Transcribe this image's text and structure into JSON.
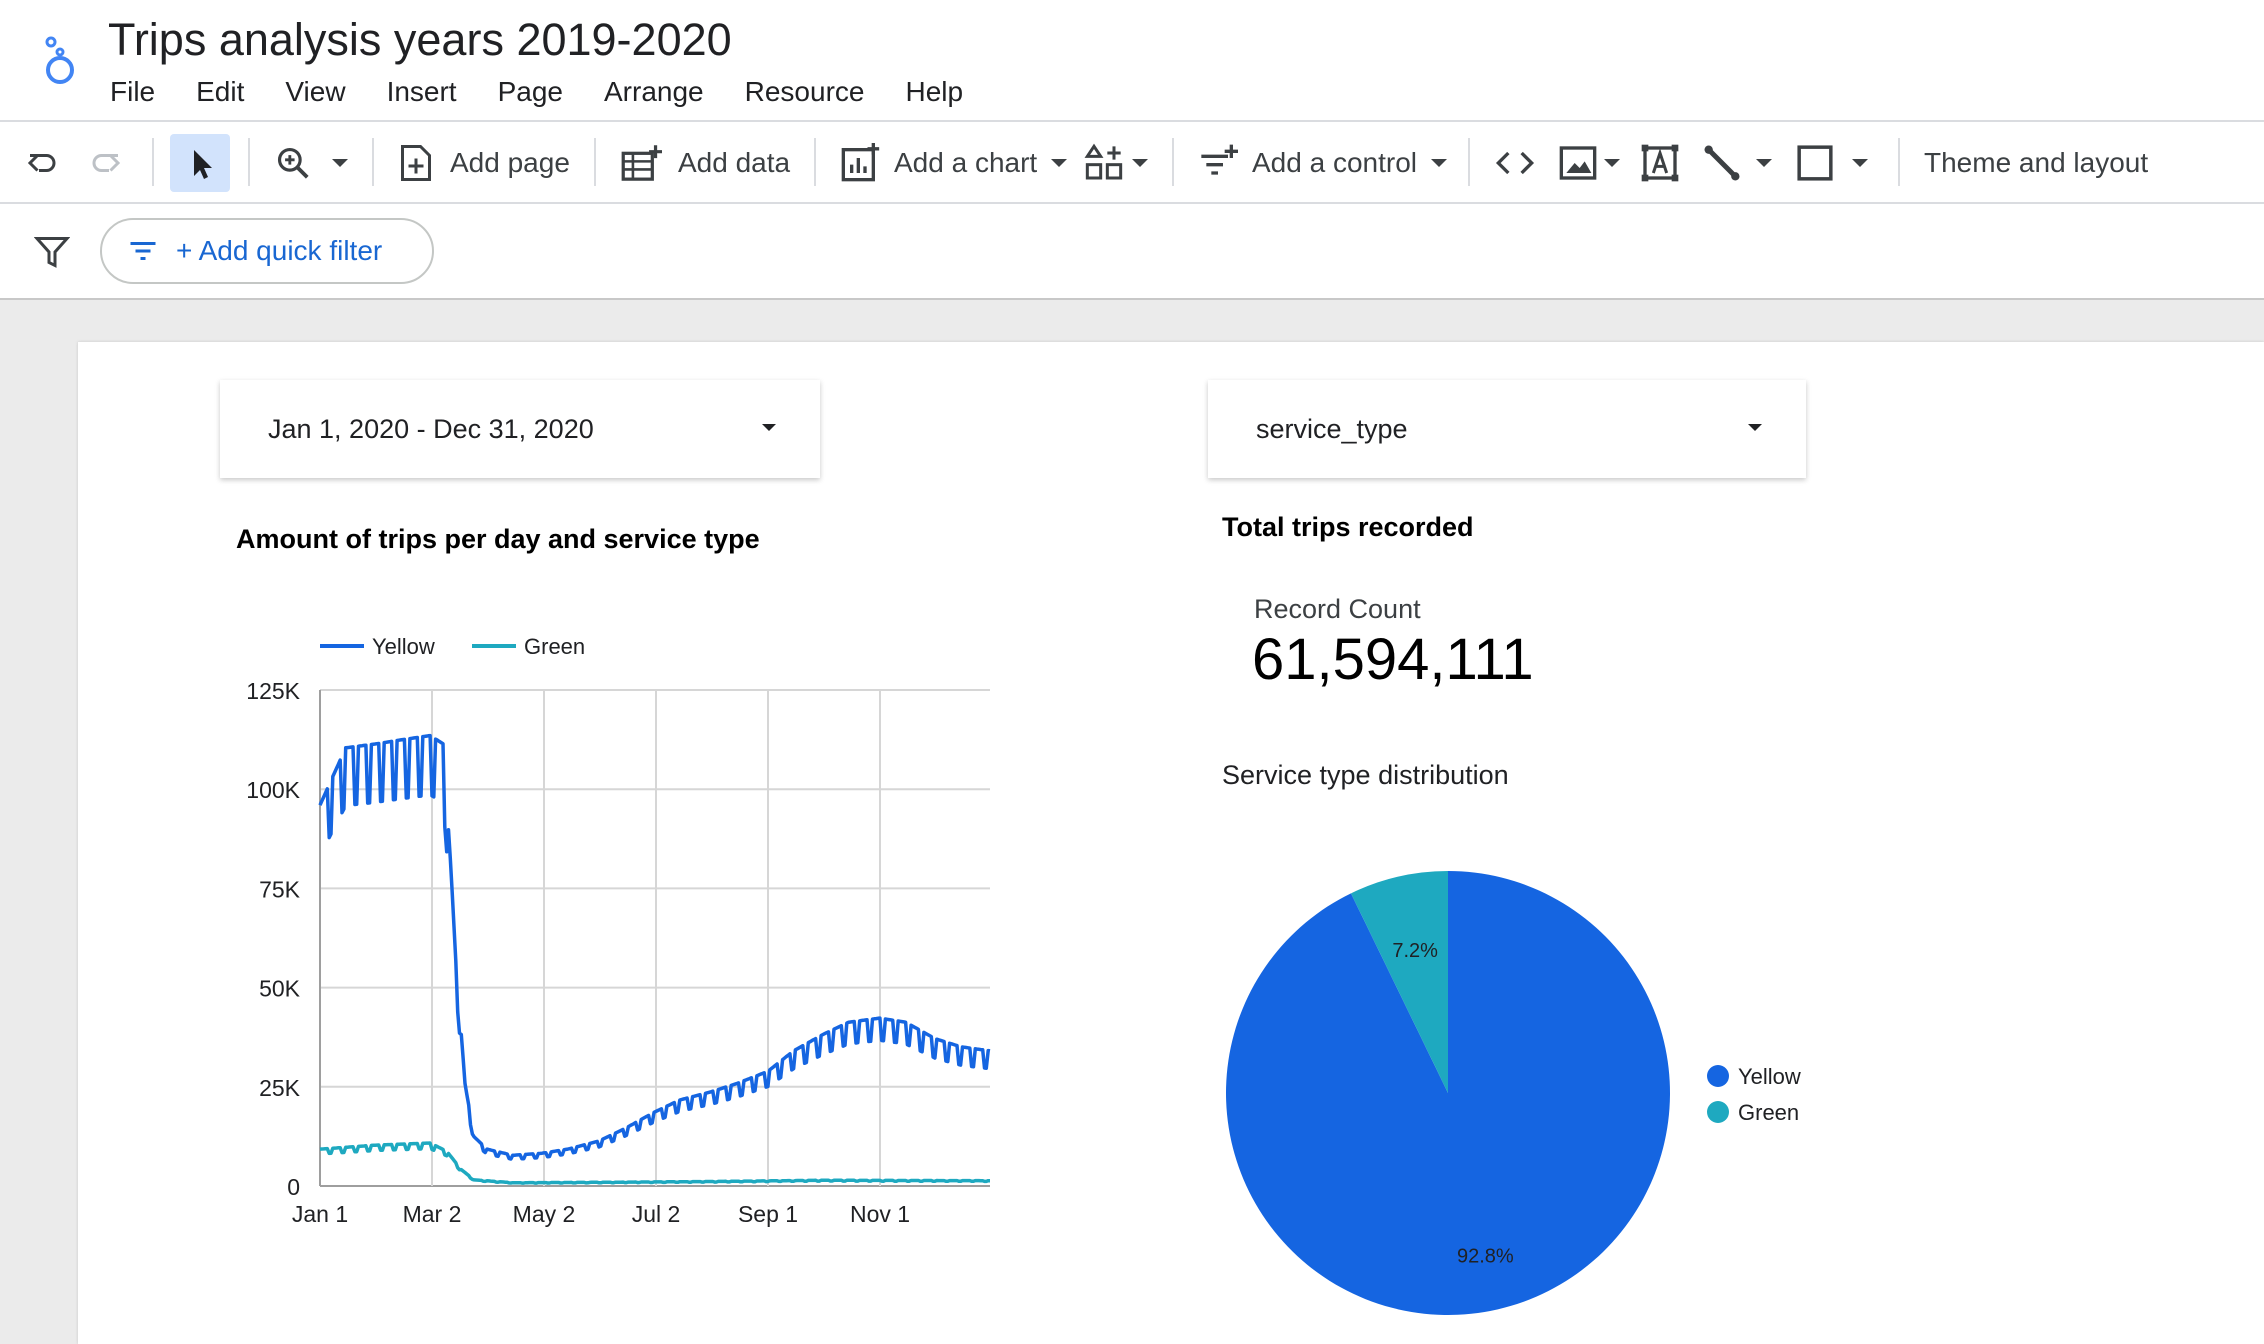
{
  "app": {
    "title": "Trips analysis years 2019-2020",
    "menu": [
      "File",
      "Edit",
      "View",
      "Insert",
      "Page",
      "Arrange",
      "Resource",
      "Help"
    ]
  },
  "toolbar": {
    "add_page": "Add page",
    "add_data": "Add data",
    "add_chart": "Add a chart",
    "add_control": "Add a control",
    "theme_layout": "Theme and layout",
    "icons": [
      "undo-icon",
      "redo-icon",
      "select-icon",
      "zoom-icon",
      "add-page-icon",
      "add-data-icon",
      "add-chart-icon",
      "community-viz-icon",
      "add-control-icon",
      "embed-code-icon",
      "image-icon",
      "text-icon",
      "line-icon",
      "shape-icon"
    ]
  },
  "filterbar": {
    "quick_filter_label": "+ Add quick filter"
  },
  "controls": {
    "date_range": "Jan 1, 2020 - Dec 31, 2020",
    "service_type": "service_type"
  },
  "line_chart": {
    "title": "Amount of trips per day and service type"
  },
  "scorecard": {
    "title": "Total trips recorded",
    "label": "Record Count",
    "value": "61,594,111"
  },
  "pie_chart": {
    "title": "Service type distribution"
  },
  "colors": {
    "yellow_series": "#1565e1",
    "green_series": "#1ea9c0",
    "accent": "#1967d2"
  },
  "chart_data": [
    {
      "type": "line",
      "title": "Amount of trips per day and service type",
      "x_tick_labels": [
        "Jan 1",
        "Mar 2",
        "May 2",
        "Jul 2",
        "Sep 1",
        "Nov 1"
      ],
      "y_tick_labels": [
        "0",
        "25K",
        "50K",
        "75K",
        "100K",
        "125K"
      ],
      "ylim": [
        0,
        125000
      ],
      "xlim": [
        "2020-01-01",
        "2020-12-31"
      ],
      "grid": true,
      "legend": "top-left",
      "series": [
        {
          "name": "Yellow",
          "color": "#1565e1",
          "points": [
            [
              "2020-01-01",
              93000
            ],
            [
              "2020-01-15",
              107000
            ],
            [
              "2020-02-01",
              108000
            ],
            [
              "2020-02-15",
              109000
            ],
            [
              "2020-03-01",
              110000
            ],
            [
              "2020-03-08",
              108000
            ],
            [
              "2020-03-12",
              80000
            ],
            [
              "2020-03-15",
              55000
            ],
            [
              "2020-03-20",
              25000
            ],
            [
              "2020-03-25",
              12000
            ],
            [
              "2020-04-01",
              9000
            ],
            [
              "2020-04-15",
              7500
            ],
            [
              "2020-05-01",
              8000
            ],
            [
              "2020-05-15",
              9000
            ],
            [
              "2020-06-01",
              11000
            ],
            [
              "2020-06-15",
              14000
            ],
            [
              "2020-07-01",
              18000
            ],
            [
              "2020-07-15",
              21000
            ],
            [
              "2020-08-01",
              23000
            ],
            [
              "2020-08-15",
              25000
            ],
            [
              "2020-09-01",
              28000
            ],
            [
              "2020-09-15",
              33000
            ],
            [
              "2020-10-01",
              37000
            ],
            [
              "2020-10-15",
              40000
            ],
            [
              "2020-11-01",
              41000
            ],
            [
              "2020-11-15",
              40000
            ],
            [
              "2020-12-01",
              36000
            ],
            [
              "2020-12-15",
              34000
            ],
            [
              "2020-12-31",
              33000
            ]
          ]
        },
        {
          "name": "Green",
          "color": "#1ea9c0",
          "points": [
            [
              "2020-01-01",
              9000
            ],
            [
              "2020-02-01",
              10000
            ],
            [
              "2020-03-01",
              10500
            ],
            [
              "2020-03-10",
              8500
            ],
            [
              "2020-03-18",
              4000
            ],
            [
              "2020-03-25",
              1500
            ],
            [
              "2020-04-15",
              800
            ],
            [
              "2020-06-01",
              900
            ],
            [
              "2020-08-01",
              1100
            ],
            [
              "2020-10-01",
              1400
            ],
            [
              "2020-12-31",
              1300
            ]
          ]
        }
      ]
    },
    {
      "type": "pie",
      "title": "Service type distribution",
      "legend": "right",
      "slices": [
        {
          "name": "Yellow",
          "value": 92.8,
          "label": "92.8%",
          "color": "#1565e1"
        },
        {
          "name": "Green",
          "value": 7.2,
          "label": "7.2%",
          "color": "#1ea9c0"
        }
      ]
    }
  ]
}
